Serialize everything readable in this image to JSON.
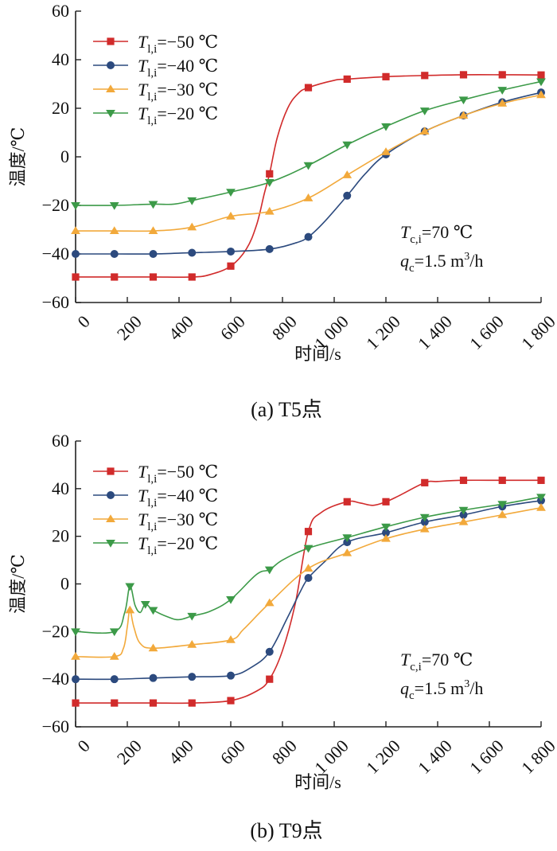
{
  "chart_data": [
    {
      "type": "line",
      "caption": "(a)  T5点",
      "xlabel": "时间/s",
      "ylabel": "温度/℃",
      "xlim": [
        0,
        1800
      ],
      "ylim": [
        -60,
        60
      ],
      "x_ticks": [
        0,
        200,
        400,
        600,
        800,
        1000,
        1200,
        1400,
        1600,
        1800
      ],
      "x_tick_labels": [
        "0",
        "200",
        "400",
        "600",
        "800",
        "1 000",
        "1 200",
        "1 400",
        "1 600",
        "1 800"
      ],
      "y_ticks": [
        -60,
        -40,
        -20,
        0,
        20,
        40,
        60
      ],
      "y_tick_labels": [
        "−60",
        "−40",
        "−20",
        "0",
        "20",
        "40",
        "60"
      ],
      "legend_position": "top-left",
      "annotation": {
        "line1": "Tc,i=70 ℃",
        "line2": "qc=1.5 m³/h"
      },
      "series": [
        {
          "name": "Tl,i=−50 ℃",
          "color": "#d12b2b",
          "marker": "square",
          "marker_x": [
            0,
            150,
            300,
            450,
            600,
            750,
            900,
            1050,
            1200,
            1350,
            1500,
            1650,
            1800
          ],
          "x": [
            0,
            150,
            300,
            450,
            520,
            600,
            660,
            700,
            730,
            750,
            780,
            820,
            860,
            900,
            1000,
            1050,
            1200,
            1350,
            1500,
            1650,
            1800
          ],
          "y": [
            -49.5,
            -49.5,
            -49.5,
            -49.5,
            -48.5,
            -45,
            -38,
            -28,
            -15,
            -7,
            8,
            20,
            26,
            28.5,
            31.5,
            32,
            33,
            33.5,
            33.8,
            33.8,
            33.7
          ]
        },
        {
          "name": "Tl,i=−40 ℃",
          "color": "#2c4a7e",
          "marker": "circle",
          "marker_x": [
            0,
            150,
            300,
            450,
            600,
            750,
            900,
            1050,
            1200,
            1350,
            1500,
            1650,
            1800
          ],
          "x": [
            0,
            150,
            300,
            450,
            600,
            750,
            850,
            900,
            960,
            1050,
            1120,
            1200,
            1350,
            1500,
            1650,
            1800
          ],
          "y": [
            -40,
            -40,
            -40,
            -39.5,
            -39,
            -38,
            -35.5,
            -33,
            -27,
            -16,
            -7,
            1,
            10.5,
            17,
            22.5,
            26.5
          ]
        },
        {
          "name": "Tl,i=−30 ℃",
          "color": "#f2a93b",
          "marker": "triangle-up",
          "marker_x": [
            0,
            150,
            300,
            450,
            600,
            750,
            900,
            1050,
            1200,
            1350,
            1500,
            1650,
            1800
          ],
          "x": [
            0,
            150,
            300,
            450,
            600,
            750,
            900,
            1050,
            1200,
            1350,
            1500,
            1650,
            1800
          ],
          "y": [
            -30.5,
            -30.5,
            -30.5,
            -29,
            -24.5,
            -22.5,
            -17,
            -7.5,
            2,
            10.5,
            17,
            22,
            25.5
          ]
        },
        {
          "name": "Tl,i=−20 ℃",
          "color": "#3c9a48",
          "marker": "triangle-down",
          "marker_x": [
            0,
            150,
            300,
            450,
            600,
            750,
            900,
            1050,
            1200,
            1350,
            1500,
            1650,
            1800
          ],
          "x": [
            0,
            150,
            300,
            380,
            450,
            600,
            750,
            900,
            1050,
            1200,
            1350,
            1500,
            1650,
            1800
          ],
          "y": [
            -20,
            -20,
            -19.5,
            -19.5,
            -18,
            -14.5,
            -10.5,
            -3.5,
            5,
            12.5,
            19,
            23.5,
            27.5,
            31
          ]
        }
      ]
    },
    {
      "type": "line",
      "caption": "(b)  T9点",
      "xlabel": "时间/s",
      "ylabel": "温度/℃",
      "xlim": [
        0,
        1800
      ],
      "ylim": [
        -60,
        60
      ],
      "x_ticks": [
        0,
        200,
        400,
        600,
        800,
        1000,
        1200,
        1400,
        1600,
        1800
      ],
      "x_tick_labels": [
        "0",
        "200",
        "400",
        "600",
        "800",
        "1 000",
        "1 200",
        "1 400",
        "1 600",
        "1 800"
      ],
      "y_ticks": [
        -60,
        -40,
        -20,
        0,
        20,
        40,
        60
      ],
      "y_tick_labels": [
        "−60",
        "−40",
        "−20",
        "0",
        "20",
        "40",
        "60"
      ],
      "legend_position": "top-left",
      "annotation": {
        "line1": "Tc,i=70 ℃",
        "line2": "qc=1.5 m³/h"
      },
      "series": [
        {
          "name": "Tl,i=−50 ℃",
          "color": "#d12b2b",
          "marker": "square",
          "marker_x": [
            0,
            150,
            300,
            450,
            600,
            750,
            900,
            1050,
            1200,
            1350,
            1500,
            1650,
            1800
          ],
          "x": [
            0,
            150,
            300,
            450,
            600,
            700,
            750,
            800,
            850,
            900,
            950,
            1050,
            1100,
            1150,
            1200,
            1250,
            1350,
            1400,
            1500,
            1650,
            1800
          ],
          "y": [
            -50,
            -50,
            -50,
            -50,
            -49,
            -45,
            -40,
            -28,
            -8,
            22,
            30,
            34.5,
            34,
            33,
            34.5,
            37,
            42.5,
            43,
            43.5,
            43.5,
            43.5
          ]
        },
        {
          "name": "Tl,i=−40 ℃",
          "color": "#2c4a7e",
          "marker": "circle",
          "marker_x": [
            0,
            150,
            300,
            450,
            600,
            750,
            900,
            1050,
            1200,
            1350,
            1500,
            1650,
            1800
          ],
          "x": [
            0,
            150,
            300,
            450,
            600,
            680,
            750,
            820,
            870,
            900,
            960,
            1050,
            1200,
            1350,
            1500,
            1650,
            1800
          ],
          "y": [
            -40,
            -40,
            -39.5,
            -39,
            -38.5,
            -35,
            -28.5,
            -14,
            -3,
            2.5,
            9,
            17.5,
            21.5,
            26,
            29,
            32.5,
            35
          ]
        },
        {
          "name": "Tl,i=−30 ℃",
          "color": "#f2a93b",
          "marker": "triangle-up",
          "marker_x": [
            0,
            150,
            210,
            300,
            450,
            600,
            750,
            900,
            1050,
            1200,
            1350,
            1500,
            1650,
            1800
          ],
          "x": [
            0,
            150,
            185,
            200,
            210,
            225,
            250,
            300,
            450,
            600,
            650,
            750,
            900,
            1050,
            1200,
            1350,
            1500,
            1650,
            1800
          ],
          "y": [
            -30.5,
            -30.5,
            -27,
            -18,
            -11,
            -18,
            -25,
            -27,
            -25.5,
            -23.5,
            -19,
            -8,
            6.5,
            13,
            19,
            23,
            26,
            29,
            32
          ]
        },
        {
          "name": "Tl,i=−20 ℃",
          "color": "#3c9a48",
          "marker": "triangle-down",
          "marker_x": [
            0,
            150,
            210,
            270,
            300,
            450,
            600,
            750,
            900,
            1050,
            1200,
            1350,
            1500,
            1650,
            1800
          ],
          "x": [
            0,
            150,
            190,
            210,
            230,
            250,
            270,
            300,
            360,
            400,
            450,
            520,
            600,
            700,
            750,
            800,
            900,
            1050,
            1200,
            1350,
            1500,
            1650,
            1800
          ],
          "y": [
            -20,
            -20,
            -12,
            -1,
            -9,
            -12,
            -8.5,
            -11,
            -14,
            -15,
            -13.5,
            -11.5,
            -6.5,
            4,
            6,
            10,
            15,
            19.5,
            24,
            28,
            31,
            33.5,
            36.5
          ]
        }
      ]
    }
  ]
}
